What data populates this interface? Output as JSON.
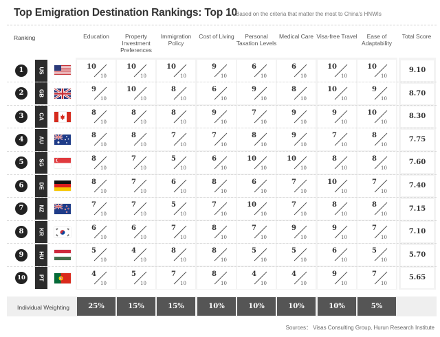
{
  "header": {
    "title": "Top Emigration Destination Rankings: Top 10",
    "subtitle": "Based on the criteria that matter the most to China's HNWIs"
  },
  "chart_data": {
    "type": "table",
    "ranking_label": "Ranking",
    "columns": [
      "Education",
      "Property Investment Preferences",
      "Immigration Policy",
      "Cost of Living",
      "Personal Taxation Levels",
      "Medical Care",
      "Visa-free Travel",
      "Ease of Adaptability",
      "Total Score"
    ],
    "score_denominator": "10",
    "rows": [
      {
        "rank": "1",
        "code": "US",
        "flag": "us-flag",
        "scores": [
          "10",
          "10",
          "10",
          "9",
          "6",
          "6",
          "10",
          "10"
        ],
        "total": "9.10"
      },
      {
        "rank": "2",
        "code": "GB",
        "flag": "uk-flag",
        "scores": [
          "9",
          "10",
          "8",
          "6",
          "9",
          "8",
          "10",
          "9"
        ],
        "total": "8.70"
      },
      {
        "rank": "3",
        "code": "CA",
        "flag": "canada-flag",
        "scores": [
          "8",
          "8",
          "8",
          "9",
          "7",
          "9",
          "9",
          "10"
        ],
        "total": "8.30"
      },
      {
        "rank": "4",
        "code": "AU",
        "flag": "australia-flag",
        "scores": [
          "8",
          "8",
          "7",
          "7",
          "8",
          "9",
          "7",
          "8"
        ],
        "total": "7.75"
      },
      {
        "rank": "5",
        "code": "SG",
        "flag": "singapore-flag",
        "scores": [
          "8",
          "7",
          "5",
          "6",
          "10",
          "10",
          "8",
          "8"
        ],
        "total": "7.60"
      },
      {
        "rank": "6",
        "code": "DE",
        "flag": "germany-flag",
        "scores": [
          "8",
          "7",
          "6",
          "8",
          "6",
          "7",
          "10",
          "7"
        ],
        "total": "7.40"
      },
      {
        "rank": "7",
        "code": "NZ",
        "flag": "new-zealand-flag",
        "scores": [
          "7",
          "7",
          "5",
          "7",
          "10",
          "7",
          "8",
          "8"
        ],
        "total": "7.15"
      },
      {
        "rank": "8",
        "code": "KR",
        "flag": "south-korea-flag",
        "scores": [
          "6",
          "6",
          "7",
          "8",
          "7",
          "9",
          "9",
          "7"
        ],
        "total": "7.10"
      },
      {
        "rank": "9",
        "code": "HU",
        "flag": "hungary-flag",
        "scores": [
          "5",
          "4",
          "8",
          "8",
          "5",
          "5",
          "6",
          "5"
        ],
        "total": "5.70"
      },
      {
        "rank": "10",
        "code": "PT",
        "flag": "portugal-flag",
        "scores": [
          "4",
          "5",
          "7",
          "8",
          "4",
          "4",
          "9",
          "7"
        ],
        "total": "5.65"
      }
    ],
    "weighting_label": "Individual Weighting",
    "weights": [
      "25%",
      "15%",
      "15%",
      "10%",
      "10%",
      "10%",
      "10%",
      "5%"
    ]
  },
  "footer": {
    "sources": "Sources： Visas Consulting Group, Hurun Research Institute"
  }
}
